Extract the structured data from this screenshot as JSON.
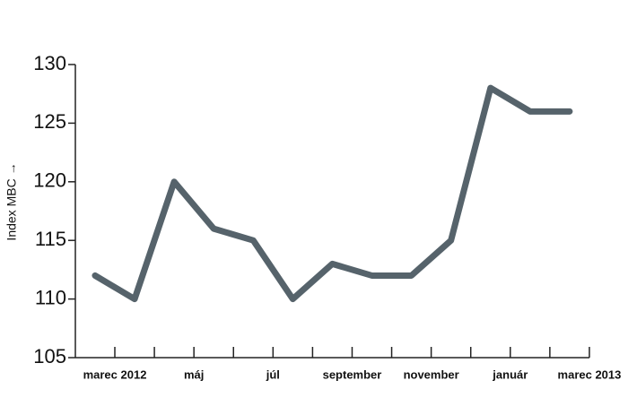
{
  "chart_data": {
    "type": "line",
    "y_label": "Index MBC →",
    "categories": [
      "marec 2012",
      null,
      "máj",
      null,
      "júl",
      null,
      "september",
      null,
      "november",
      null,
      "január",
      null,
      "marec 2013"
    ],
    "values": [
      112,
      110,
      120,
      116,
      115,
      110,
      113,
      112,
      112,
      115,
      128,
      126,
      126
    ],
    "color": "#56636b",
    "ylim": [
      105,
      130
    ],
    "yticks": [
      105,
      110,
      115,
      120,
      125,
      130
    ]
  }
}
